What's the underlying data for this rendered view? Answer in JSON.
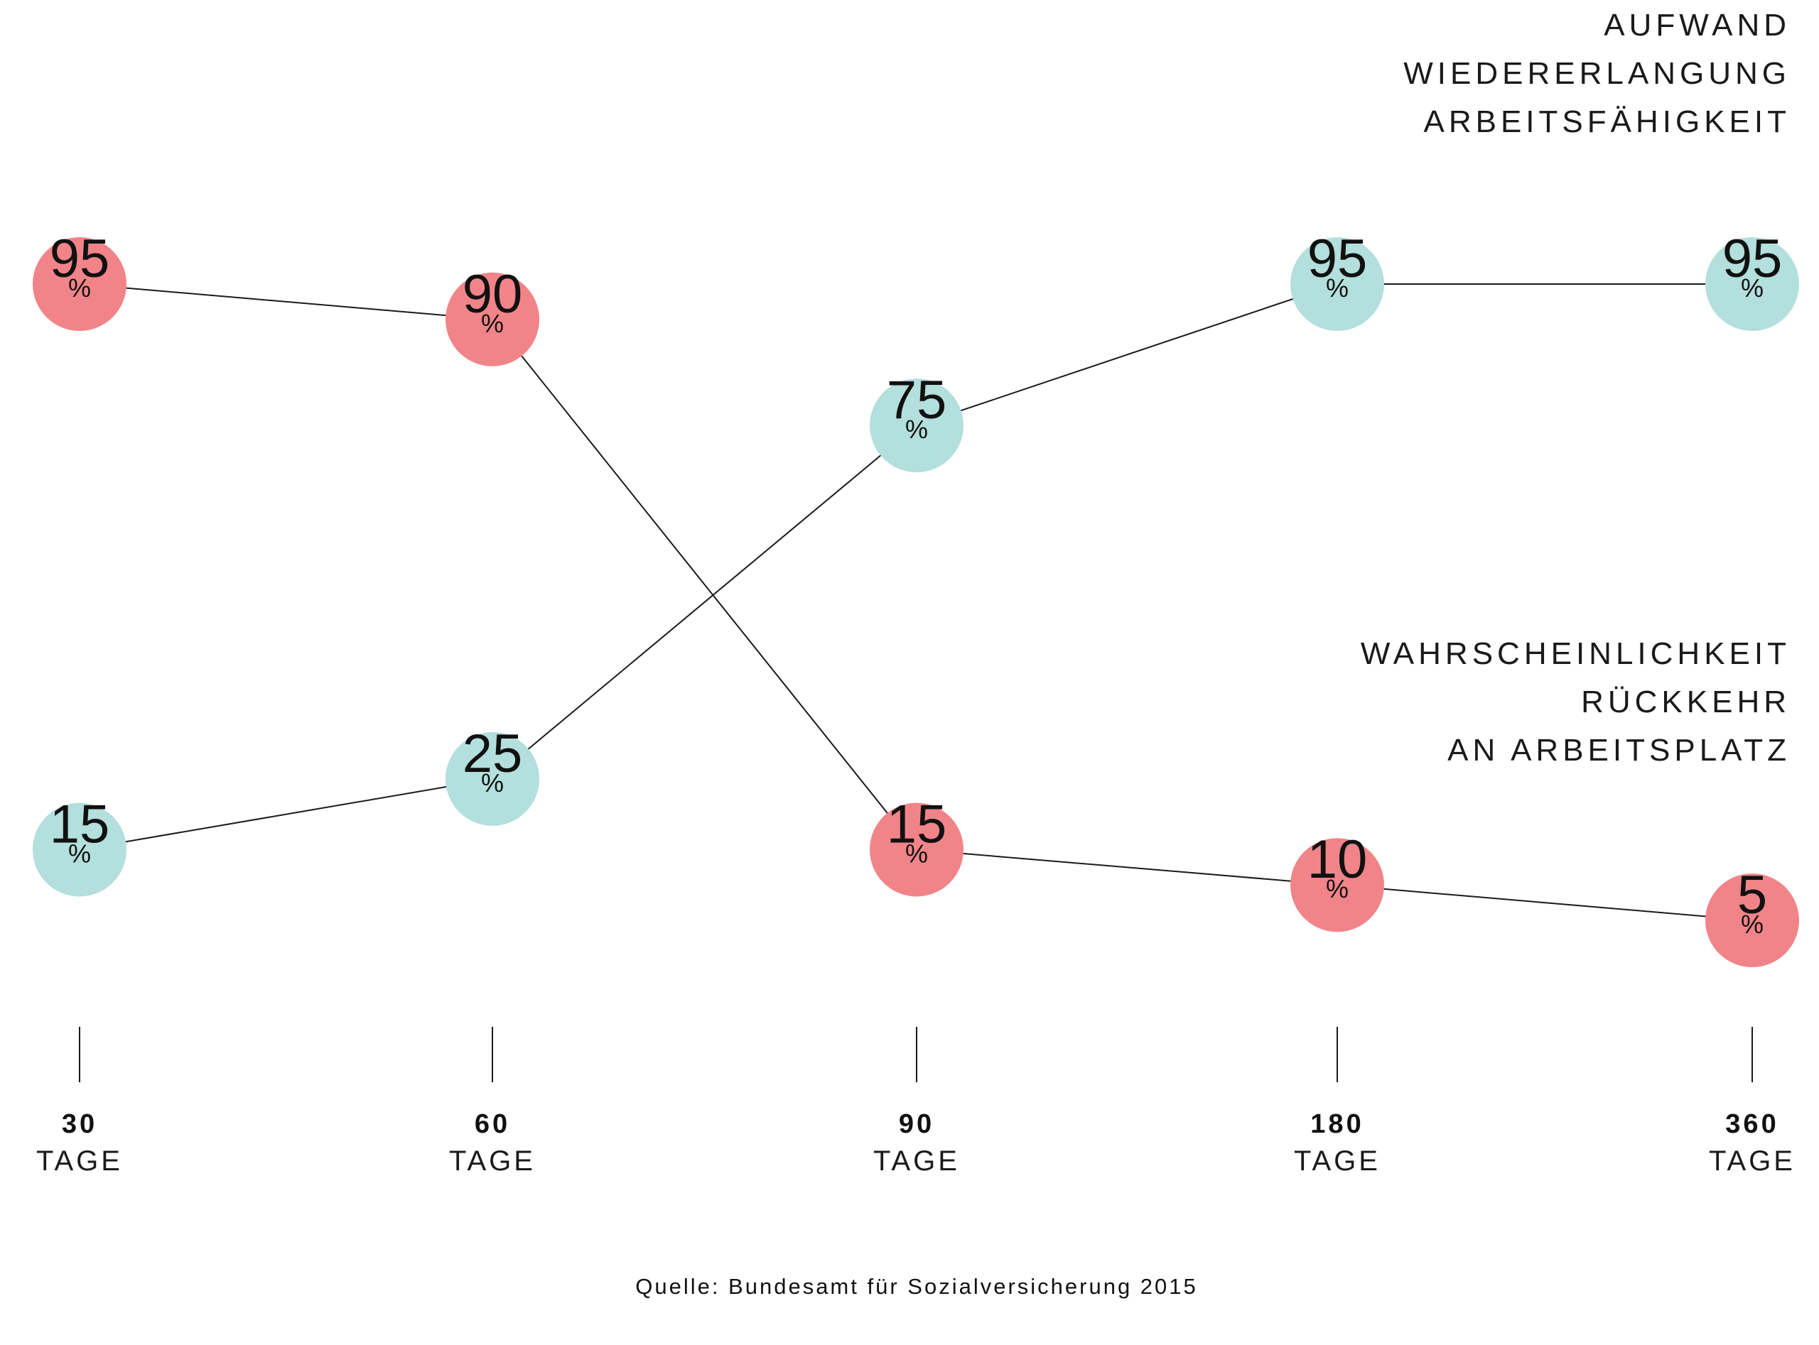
{
  "chart_data": {
    "type": "line",
    "categories": [
      "30",
      "60",
      "90",
      "180",
      "360"
    ],
    "x_unit": "TAGE",
    "value_unit": "%",
    "series": [
      {
        "name": "AUFWAND WIEDERERLANGUNG ARBEITSFÄHIGKEIT",
        "name_lines": [
          "AUFWAND",
          "WIEDERERLANGUNG",
          "ARBEITSFÄHIGKEIT"
        ],
        "values": [
          15,
          25,
          75,
          95,
          95
        ],
        "color": "#b3dfdc"
      },
      {
        "name": "WAHRSCHEINLICHKEIT RÜCKKEHR AN ARBEITSPLATZ",
        "name_lines": [
          "WAHRSCHEINLICHKEIT",
          "RÜCKKEHR",
          "AN ARBEITSPLATZ"
        ],
        "values": [
          95,
          90,
          15,
          10,
          5
        ],
        "color": "#f18488"
      }
    ],
    "ylim": [
      5,
      95
    ],
    "grid": false,
    "legend_placement": "right",
    "source": "Quelle: Bundesamt für Sozialversicherung 2015"
  }
}
